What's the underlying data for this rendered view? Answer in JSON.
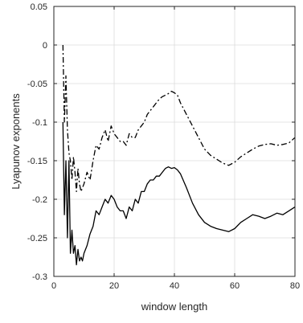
{
  "chart_data": {
    "type": "line",
    "title": "",
    "xlabel": "window length",
    "ylabel": "Lyapunov exponents",
    "xlim": [
      0,
      80
    ],
    "ylim": [
      -0.3,
      0.05
    ],
    "x_ticks": [
      0,
      20,
      40,
      60,
      80
    ],
    "y_ticks": [
      0.05,
      0,
      -0.05,
      -0.1,
      -0.15,
      -0.2,
      -0.25,
      -0.3
    ],
    "x_tick_labels": [
      "0",
      "20",
      "40",
      "60",
      "80"
    ],
    "y_tick_labels": [
      "0.05",
      "0",
      "-0.05",
      "-0.1",
      "-0.15",
      "-0.2",
      "-0.25",
      "-0.3"
    ],
    "grid": true,
    "legend": "none",
    "series": [
      {
        "line_style": "dash-dot",
        "color": "#000000",
        "x": [
          3,
          3.5,
          4,
          4.5,
          5,
          5.5,
          6,
          6.5,
          7,
          7.5,
          8,
          8.5,
          9,
          10,
          11,
          12,
          13,
          14,
          15,
          16,
          17,
          18,
          19,
          20,
          21,
          22,
          23,
          24,
          25,
          26,
          27,
          28,
          29,
          30,
          31,
          32,
          33,
          34,
          35,
          36,
          37,
          38,
          39,
          40,
          41,
          42,
          44,
          46,
          48,
          50,
          52,
          54,
          56,
          58,
          60,
          62,
          64,
          66,
          68,
          70,
          72,
          74,
          76,
          78,
          80
        ],
        "y": [
          0.0,
          -0.1,
          -0.04,
          -0.11,
          -0.14,
          -0.15,
          -0.175,
          -0.145,
          -0.165,
          -0.19,
          -0.16,
          -0.18,
          -0.19,
          -0.18,
          -0.165,
          -0.175,
          -0.15,
          -0.13,
          -0.135,
          -0.12,
          -0.11,
          -0.125,
          -0.105,
          -0.115,
          -0.12,
          -0.125,
          -0.125,
          -0.13,
          -0.115,
          -0.12,
          -0.12,
          -0.11,
          -0.105,
          -0.1,
          -0.09,
          -0.085,
          -0.08,
          -0.075,
          -0.07,
          -0.067,
          -0.065,
          -0.063,
          -0.06,
          -0.062,
          -0.065,
          -0.075,
          -0.09,
          -0.105,
          -0.12,
          -0.135,
          -0.143,
          -0.148,
          -0.153,
          -0.156,
          -0.152,
          -0.145,
          -0.14,
          -0.135,
          -0.131,
          -0.129,
          -0.128,
          -0.13,
          -0.129,
          -0.127,
          -0.12
        ]
      },
      {
        "line_style": "solid",
        "color": "#000000",
        "x": [
          3,
          3.5,
          4,
          4.5,
          5,
          5.5,
          6,
          6.5,
          7,
          7.5,
          8,
          8.5,
          9,
          9.5,
          10,
          11,
          12,
          13,
          14,
          15,
          16,
          17,
          18,
          19,
          20,
          21,
          22,
          23,
          24,
          25,
          26,
          27,
          28,
          29,
          30,
          31,
          32,
          33,
          34,
          35,
          36,
          37,
          38,
          39,
          40,
          41,
          42,
          44,
          46,
          48,
          50,
          52,
          54,
          56,
          58,
          60,
          62,
          64,
          66,
          68,
          70,
          72,
          74,
          76,
          78,
          80
        ],
        "y": [
          -0.1,
          -0.22,
          -0.15,
          -0.25,
          -0.15,
          -0.27,
          -0.24,
          -0.27,
          -0.26,
          -0.285,
          -0.265,
          -0.28,
          -0.275,
          -0.28,
          -0.27,
          -0.26,
          -0.245,
          -0.235,
          -0.215,
          -0.22,
          -0.21,
          -0.2,
          -0.205,
          -0.195,
          -0.2,
          -0.21,
          -0.215,
          -0.215,
          -0.225,
          -0.21,
          -0.215,
          -0.2,
          -0.205,
          -0.19,
          -0.19,
          -0.18,
          -0.175,
          -0.175,
          -0.17,
          -0.17,
          -0.165,
          -0.16,
          -0.158,
          -0.16,
          -0.159,
          -0.162,
          -0.167,
          -0.185,
          -0.205,
          -0.22,
          -0.23,
          -0.235,
          -0.238,
          -0.24,
          -0.242,
          -0.238,
          -0.23,
          -0.225,
          -0.22,
          -0.222,
          -0.225,
          -0.222,
          -0.218,
          -0.22,
          -0.215,
          -0.21
        ]
      }
    ]
  }
}
